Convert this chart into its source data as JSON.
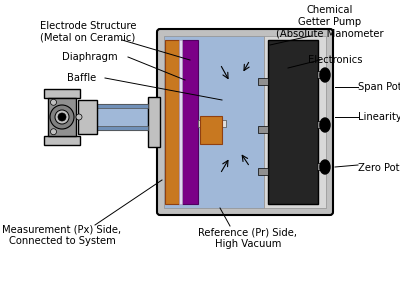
{
  "white": "#ffffff",
  "black": "#000000",
  "gray_light": "#c0c0c0",
  "gray_medium": "#909090",
  "gray_dark": "#505050",
  "blue_light": "#a0b8d8",
  "blue_medium": "#7090b8",
  "purple": "#7b0087",
  "orange": "#c87820",
  "dark_gray": "#252525",
  "labels": {
    "electrode": "Electrode Structure\n(Metal on Ceramic)",
    "diaphragm": "Diaphragm",
    "baffle": "Baffle",
    "measurement": "Measurement (Px) Side,\nConnected to System",
    "chemical": "Chemical\nGetter Pump\n(Absolute Manometer",
    "electronics": "Electronics",
    "span": "Span Pot",
    "linearity": "Linearity Pot",
    "zero": "Zero Pot(s)",
    "reference": "Reference (Pr) Side,\nHigh Vacuum"
  }
}
